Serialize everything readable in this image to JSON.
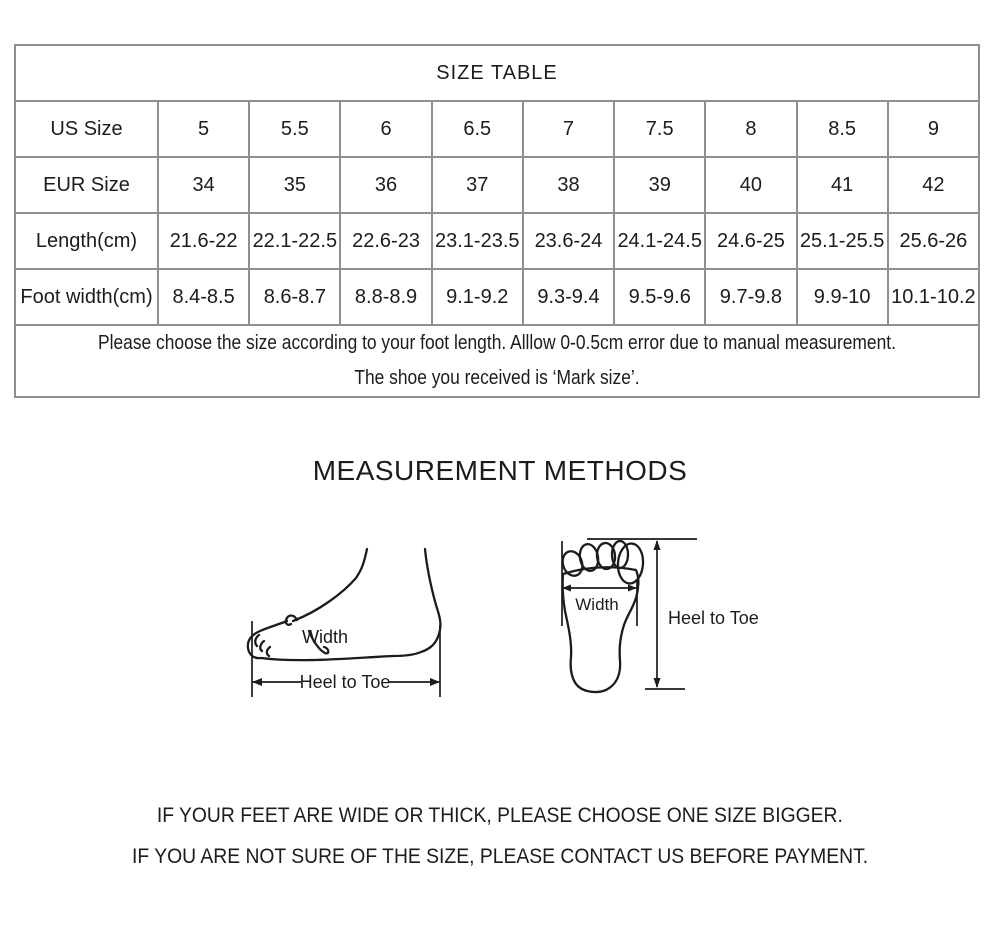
{
  "size_table": {
    "title": "SIZE TABLE",
    "rows": [
      {
        "label": "US Size",
        "values": [
          "5",
          "5.5",
          "6",
          "6.5",
          "7",
          "7.5",
          "8",
          "8.5",
          "9"
        ]
      },
      {
        "label": "EUR Size",
        "values": [
          "34",
          "35",
          "36",
          "37",
          "38",
          "39",
          "40",
          "41",
          "42"
        ]
      },
      {
        "label": "Length(cm)",
        "values": [
          "21.6-22",
          "22.1-22.5",
          "22.6-23",
          "23.1-23.5",
          "23.6-24",
          "24.1-24.5",
          "24.6-25",
          "25.1-25.5",
          "25.6-26"
        ]
      },
      {
        "label": "Foot width(cm)",
        "values": [
          "8.4-8.5",
          "8.6-8.7",
          "8.8-8.9",
          "9.1-9.2",
          "9.3-9.4",
          "9.5-9.6",
          "9.7-9.8",
          "9.9-10",
          "10.1-10.2"
        ]
      }
    ],
    "note_line1": "Please choose the size according to your foot length. Alllow 0-0.5cm error due to manual measurement.",
    "note_line2": "The shoe you received is ‘Mark size’."
  },
  "measurement": {
    "heading": "MEASUREMENT METHODS",
    "side_view": {
      "width_label": "Width",
      "heel_to_toe_label": "Heel to Toe"
    },
    "top_view": {
      "width_label": "Width",
      "heel_to_toe_label": "Heel to Toe"
    }
  },
  "footer": {
    "line1": "IF YOUR FEET ARE WIDE OR THICK, PLEASE CHOOSE ONE SIZE BIGGER.",
    "line2": "IF YOU ARE NOT SURE OF THE SIZE, PLEASE CONTACT US BEFORE PAYMENT."
  },
  "colors": {
    "table_border": "#8f8f8f",
    "text": "#1c1c1c",
    "background": "#ffffff"
  }
}
